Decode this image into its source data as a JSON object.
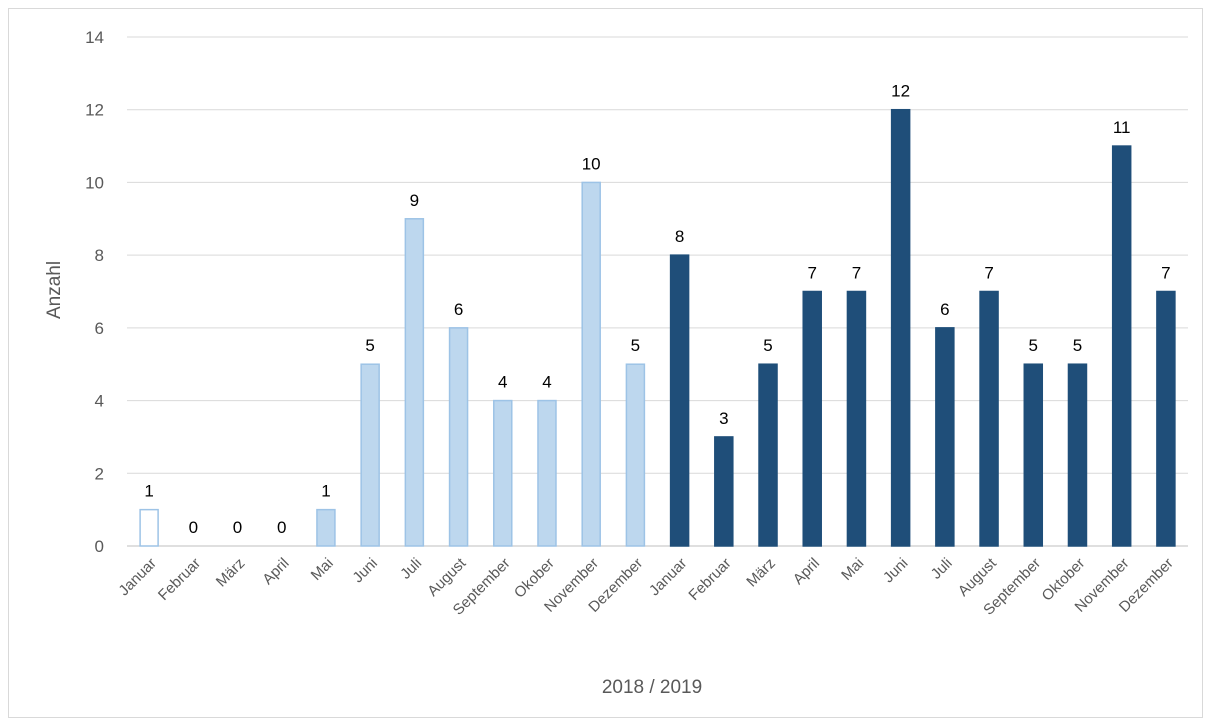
{
  "chart_data": {
    "type": "bar",
    "title": "",
    "xlabel": "2018 / 2019",
    "ylabel": "Anzahl",
    "ylim": [
      0,
      14
    ],
    "yticks": [
      0,
      2,
      4,
      6,
      8,
      10,
      12,
      14
    ],
    "grid": true,
    "legend": "none",
    "categories": [
      "Januar",
      "Februar",
      "März",
      "April",
      "Mai",
      "Juni",
      "Juli",
      "August",
      "September",
      "Okober",
      "November",
      "Dezember",
      "Januar",
      "Februar",
      "März",
      "April",
      "Mai",
      "Juni",
      "Juli",
      "August",
      "September",
      "Oktober",
      "November",
      "Dezember"
    ],
    "values": [
      1,
      0,
      0,
      0,
      1,
      5,
      9,
      6,
      4,
      4,
      10,
      5,
      8,
      3,
      5,
      7,
      7,
      12,
      6,
      7,
      5,
      5,
      11,
      7
    ],
    "year_groups": [
      2018,
      2018,
      2018,
      2018,
      2018,
      2018,
      2018,
      2018,
      2018,
      2018,
      2018,
      2018,
      2019,
      2019,
      2019,
      2019,
      2019,
      2019,
      2019,
      2019,
      2019,
      2019,
      2019,
      2019
    ],
    "colors": {
      "y2018_fill": "#bdd7ee",
      "y2018_stroke": "#9dc3e6",
      "y2018_first_fill": "#ffffff",
      "y2019_fill": "#1f4e79",
      "grid": "#d9d9d9",
      "axis": "#bfbfbf"
    }
  }
}
